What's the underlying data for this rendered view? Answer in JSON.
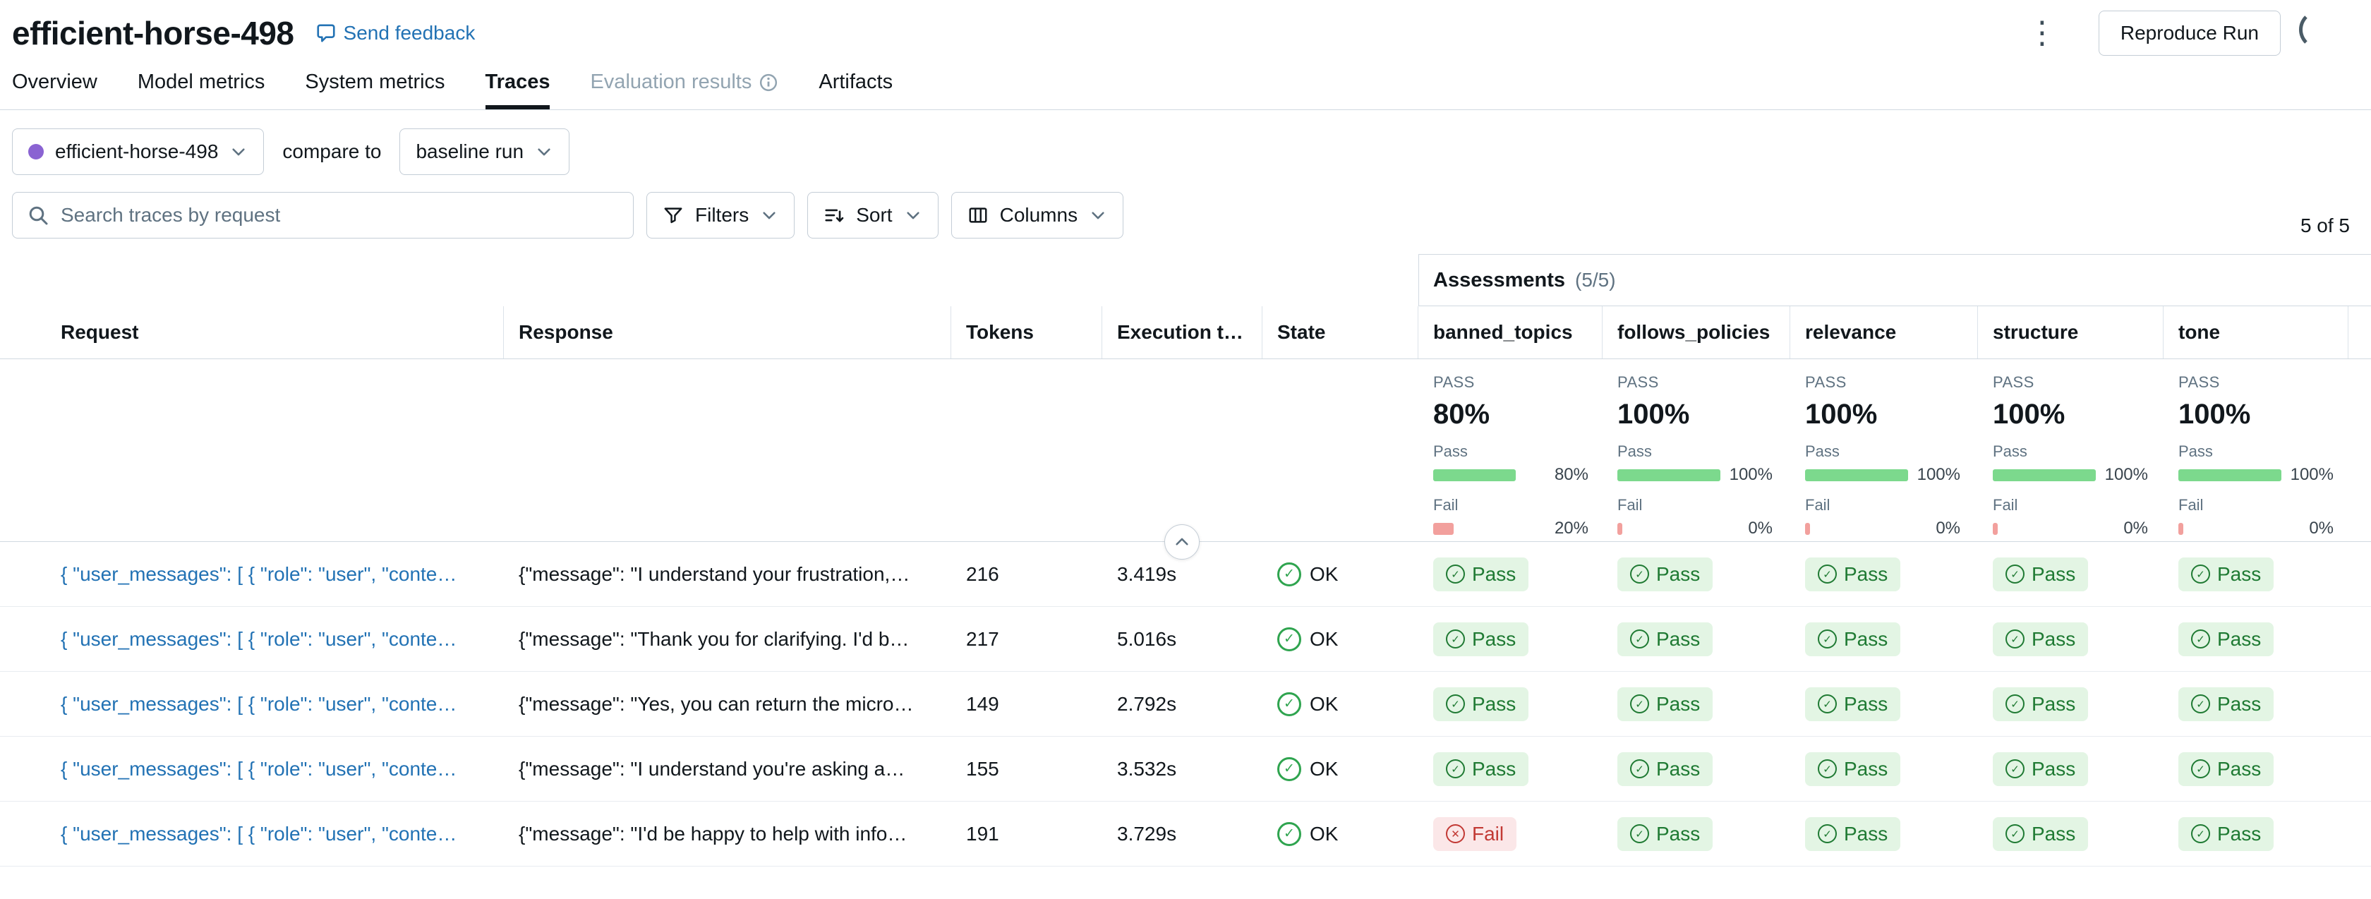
{
  "header": {
    "title": "efficient-horse-498",
    "feedback": "Send feedback",
    "reproduce": "Reproduce Run",
    "kebab_icon": "⋮"
  },
  "tabs": [
    "Overview",
    "Model metrics",
    "System metrics",
    "Traces",
    "Evaluation results",
    "Artifacts"
  ],
  "compare": {
    "run": "efficient-horse-498",
    "label": "compare to",
    "baseline": "baseline run"
  },
  "toolbar": {
    "search_placeholder": "Search traces by request",
    "filters": "Filters",
    "sort": "Sort",
    "columns": "Columns",
    "count": "5 of 5"
  },
  "assessments": {
    "title": "Assessments",
    "count": "(5/5)"
  },
  "columns": [
    "Request",
    "Response",
    "Tokens",
    "Execution t…",
    "State",
    "banned_topics",
    "follows_policies",
    "relevance",
    "structure",
    "tone"
  ],
  "summary": [
    {
      "overall_label": "PASS",
      "overall_value": "80%",
      "pass_label": "Pass",
      "pass_pct": "80%",
      "fail_label": "Fail",
      "fail_pct": "20%"
    },
    {
      "overall_label": "PASS",
      "overall_value": "100%",
      "pass_label": "Pass",
      "pass_pct": "100%",
      "fail_label": "Fail",
      "fail_pct": "0%"
    },
    {
      "overall_label": "PASS",
      "overall_value": "100%",
      "pass_label": "Pass",
      "pass_pct": "100%",
      "fail_label": "Fail",
      "fail_pct": "0%"
    },
    {
      "overall_label": "PASS",
      "overall_value": "100%",
      "pass_label": "Pass",
      "pass_pct": "100%",
      "fail_label": "Fail",
      "fail_pct": "0%"
    },
    {
      "overall_label": "PASS",
      "overall_value": "100%",
      "pass_label": "Pass",
      "pass_pct": "100%",
      "fail_label": "Fail",
      "fail_pct": "0%"
    }
  ],
  "rows": [
    {
      "request": "{ \"user_messages\": [ { \"role\": \"user\", \"conte…",
      "response": "{\"message\": \"I understand your frustration,…",
      "tokens": "216",
      "execution_time": "3.419s",
      "state": "OK",
      "assessments": [
        {
          "status": "pass",
          "label": "Pass"
        },
        {
          "status": "pass",
          "label": "Pass"
        },
        {
          "status": "pass",
          "label": "Pass"
        },
        {
          "status": "pass",
          "label": "Pass"
        },
        {
          "status": "pass",
          "label": "Pass"
        }
      ]
    },
    {
      "request": "{ \"user_messages\": [ { \"role\": \"user\", \"conte…",
      "response": "{\"message\": \"Thank you for clarifying. I'd b…",
      "tokens": "217",
      "execution_time": "5.016s",
      "state": "OK",
      "assessments": [
        {
          "status": "pass",
          "label": "Pass"
        },
        {
          "status": "pass",
          "label": "Pass"
        },
        {
          "status": "pass",
          "label": "Pass"
        },
        {
          "status": "pass",
          "label": "Pass"
        },
        {
          "status": "pass",
          "label": "Pass"
        }
      ]
    },
    {
      "request": "{ \"user_messages\": [ { \"role\": \"user\", \"conte…",
      "response": "{\"message\": \"Yes, you can return the micro…",
      "tokens": "149",
      "execution_time": "2.792s",
      "state": "OK",
      "assessments": [
        {
          "status": "pass",
          "label": "Pass"
        },
        {
          "status": "pass",
          "label": "Pass"
        },
        {
          "status": "pass",
          "label": "Pass"
        },
        {
          "status": "pass",
          "label": "Pass"
        },
        {
          "status": "pass",
          "label": "Pass"
        }
      ]
    },
    {
      "request": "{ \"user_messages\": [ { \"role\": \"user\", \"conte…",
      "response": "{\"message\": \"I understand you're asking a…",
      "tokens": "155",
      "execution_time": "3.532s",
      "state": "OK",
      "assessments": [
        {
          "status": "pass",
          "label": "Pass"
        },
        {
          "status": "pass",
          "label": "Pass"
        },
        {
          "status": "pass",
          "label": "Pass"
        },
        {
          "status": "pass",
          "label": "Pass"
        },
        {
          "status": "pass",
          "label": "Pass"
        }
      ]
    },
    {
      "request": "{ \"user_messages\": [ { \"role\": \"user\", \"conte…",
      "response": "{\"message\": \"I'd be happy to help with info…",
      "tokens": "191",
      "execution_time": "3.729s",
      "state": "OK",
      "assessments": [
        {
          "status": "fail",
          "label": "Fail"
        },
        {
          "status": "pass",
          "label": "Pass"
        },
        {
          "status": "pass",
          "label": "Pass"
        },
        {
          "status": "pass",
          "label": "Pass"
        },
        {
          "status": "pass",
          "label": "Pass"
        }
      ]
    }
  ],
  "colors": {
    "accent_blue": "#2272B4",
    "pass_bar_green": "#7CD98D",
    "fail_bar_red": "#F2A09D",
    "pass_badge_bg": "#E3F5E4",
    "pass_badge_text": "#1F7A33",
    "fail_badge_bg": "#FBE7E8",
    "fail_badge_text": "#C23934",
    "ok_state_green": "#2FA44F",
    "run_dot_purple": "#8A63D2"
  },
  "icons": {
    "kebab": "⋮",
    "check": "✓",
    "cross": "✕",
    "search": "magnifier",
    "filter": "funnel",
    "sort": "sort-bars",
    "columns": "table-columns",
    "chevron": "chevron-down",
    "collapse": "chevron-up",
    "feedback": "speech-bubble",
    "info": "info-circle",
    "spinner": "loading-arc"
  }
}
